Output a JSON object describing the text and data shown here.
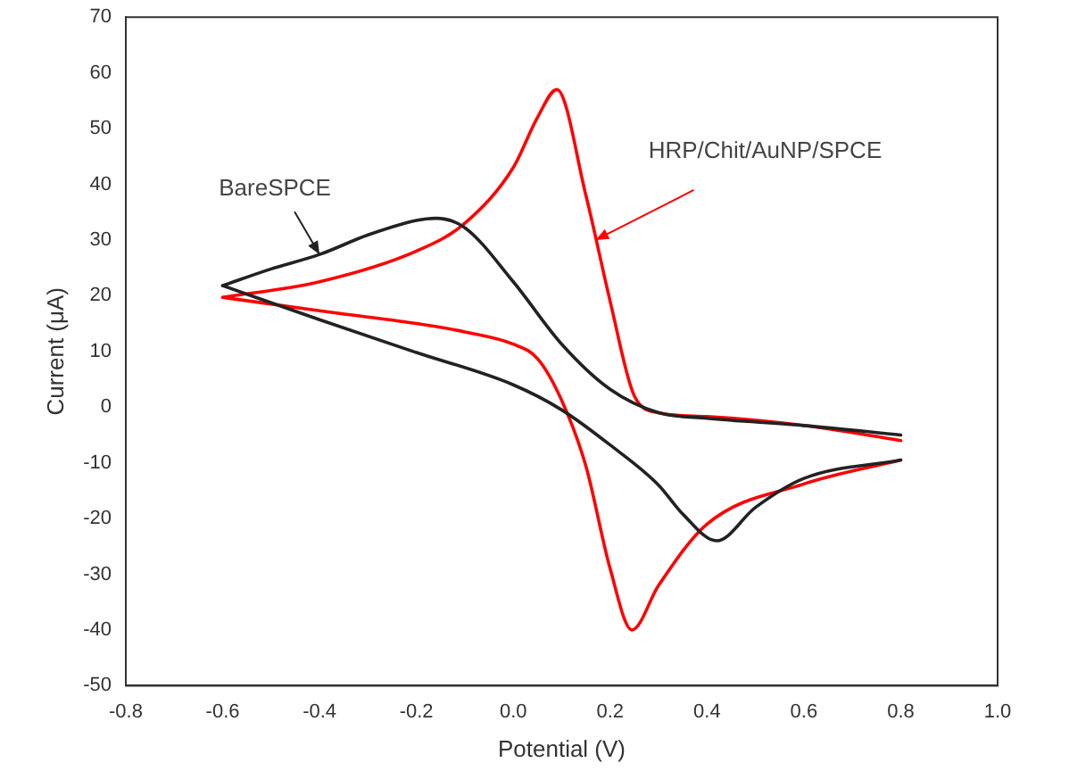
{
  "chart_data": {
    "type": "line",
    "xlabel": "Potential (V)",
    "ylabel": "Current (μA)",
    "xlim": [
      -0.8,
      1.0
    ],
    "xticks": [
      -0.8,
      -0.6,
      -0.4,
      -0.2,
      {
        "value": 0,
        "label": "0.0"
      },
      0.2,
      0.4,
      0.6,
      0.8,
      {
        "value": 1,
        "label": "1.0"
      }
    ],
    "ylim": [
      -50,
      70
    ],
    "yticks": [
      -50,
      -40,
      -30,
      -20,
      -10,
      0,
      10,
      20,
      30,
      40,
      50,
      60,
      70
    ],
    "grid": false,
    "legend": false,
    "marker": "none",
    "line_style": "solid",
    "annotations": [
      {
        "text": "BareSPCE",
        "x": -0.4,
        "y": 27.4
      },
      {
        "text": "HRP/Chit/AuNP/SPCE",
        "x": 0.17,
        "y": 30
      }
    ],
    "series": [
      {
        "color": "#222222",
        "x": [
          -0.6,
          -0.5,
          -0.4,
          -0.3,
          -0.2,
          -0.16,
          -0.1,
          0.0,
          0.1,
          0.2,
          0.3,
          0.4,
          0.6,
          0.8
        ],
        "values": [
          21.8,
          24.8,
          27.4,
          30.9,
          33.5,
          33.9,
          32.2,
          22.5,
          11.3,
          3.2,
          -1,
          -2,
          -3.3,
          -5
        ]
      },
      {
        "color": "#222222",
        "x": [
          -0.6,
          -0.4,
          -0.2,
          0.0,
          0.1,
          0.2,
          0.3,
          0.35,
          0.42,
          0.5,
          0.6,
          0.8
        ],
        "values": [
          21.8,
          15.7,
          9.8,
          4,
          -0.5,
          -6.8,
          -14,
          -19.2,
          -24,
          -18,
          -12.8,
          -9.5
        ]
      },
      {
        "color": "#ff0000",
        "x": [
          -0.6,
          -0.4,
          -0.2,
          -0.1,
          0.0,
          0.05,
          0.09,
          0.15,
          0.2,
          0.25,
          0.3,
          0.4,
          0.6,
          0.8
        ],
        "values": [
          19.7,
          22.5,
          28,
          33,
          43,
          52,
          57,
          38,
          19,
          2,
          -1,
          -1.7,
          -3.3,
          -6
        ]
      },
      {
        "color": "#ff0000",
        "x": [
          -0.6,
          -0.4,
          -0.2,
          -0.1,
          0.0,
          0.05,
          0.1,
          0.15,
          0.2,
          0.245,
          0.3,
          0.4,
          0.6,
          0.8
        ],
        "values": [
          19.7,
          17.3,
          15,
          13.5,
          11.3,
          8.7,
          1.2,
          -10.6,
          -29,
          -40,
          -32,
          -21,
          -13.8,
          -9.5
        ]
      }
    ]
  }
}
